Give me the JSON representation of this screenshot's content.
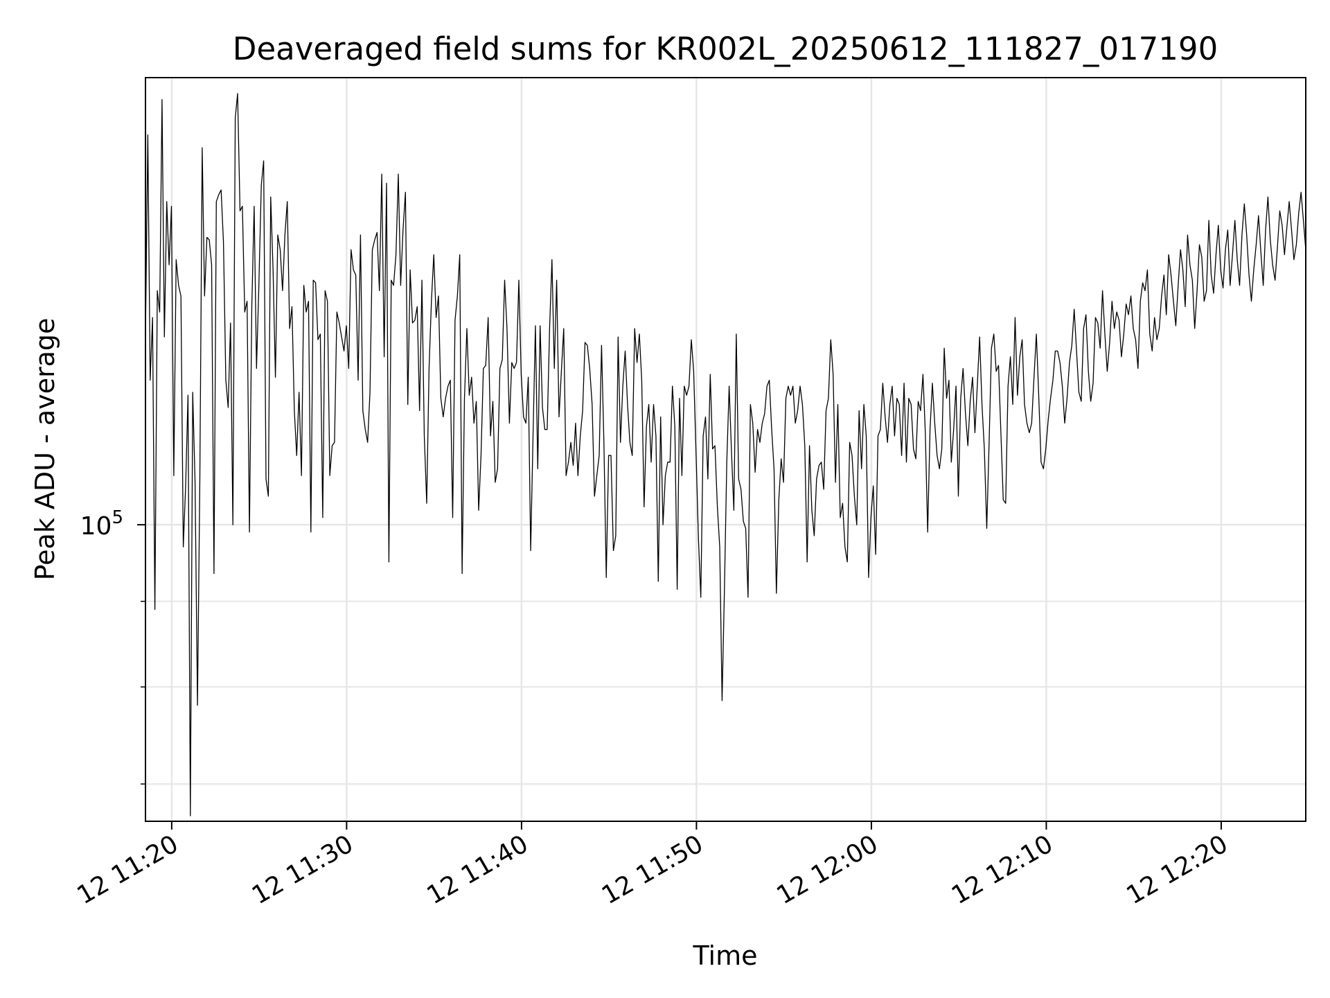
{
  "chart_data": {
    "type": "line",
    "title": "Deaveraged field sums for KR002L_20250612_111827_017190",
    "xlabel": "Time",
    "ylabel": "Peak ADU - average",
    "y_scale": "log",
    "grid": true,
    "line_color": "#000000",
    "x_ticks": [
      "12 11:20",
      "12 11:30",
      "12 11:40",
      "12 11:50",
      "12 12:00",
      "12 12:10",
      "12 12:20"
    ],
    "y_tick_labels": [
      {
        "base": "10",
        "exp": "5",
        "value": 100000
      }
    ],
    "xlim": [
      "2025-06-12T11:18:30",
      "2025-06-12T12:24:50"
    ],
    "ylim": [
      66500,
      185000
    ],
    "series": [
      {
        "x_start": "2025-06-12T11:18:30",
        "x_end": "2025-06-12T12:24:50",
        "values": [
          129500,
          171000,
          122000,
          133000,
          89000,
          138000,
          134000,
          179500,
          129500,
          156000,
          143000,
          155000,
          107000,
          144000,
          139000,
          137000,
          97000,
          105500,
          119500,
          67000,
          120000,
          106000,
          78000,
          106500,
          168000,
          137000,
          148500,
          148000,
          143000,
          93500,
          156000,
          157500,
          158500,
          147500,
          122000,
          117500,
          132000,
          100000,
          175000,
          181000,
          154000,
          155000,
          134000,
          136000,
          99000,
          135000,
          155000,
          124000,
          139000,
          159500,
          165000,
          106500,
          104000,
          157000,
          142000,
          122500,
          149000,
          146000,
          138000,
          149000,
          156000,
          131000,
          135000,
          117000,
          110000,
          120000,
          107000,
          139000,
          134000,
          136000,
          99000,
          140000,
          139500,
          129000,
          130000,
          101000,
          138000,
          136000,
          107000,
          111500,
          112000,
          134000,
          132000,
          129500,
          127000,
          131500,
          124000,
          146000,
          142000,
          141000,
          122000,
          149000,
          117000,
          114000,
          112000,
          120000,
          146000,
          148000,
          149500,
          138000,
          162000,
          126000,
          160000,
          95000,
          140000,
          139000,
          145000,
          162000,
          139000,
          150000,
          158000,
          118000,
          142000,
          132000,
          132500,
          135000,
          117000,
          140000,
          113000,
          103000,
          124000,
          136000,
          145000,
          133000,
          137000,
          119000,
          116000,
          119000,
          121000,
          122000,
          101000,
          132500,
          137000,
          145000,
          93500,
          119000,
          131000,
          119500,
          122500,
          115000,
          118500,
          102000,
          110000,
          124000,
          124500,
          133000,
          113000,
          118500,
          106000,
          108000,
          124000,
          125500,
          140000,
          131000,
          115000,
          125000,
          124000,
          125000,
          140000,
          123000,
          116000,
          115000,
          122500,
          96500,
          113000,
          131500,
          108000,
          131500,
          117500,
          114000,
          114000,
          131000,
          144000,
          124000,
          140000,
          116000,
          123500,
          131000,
          107000,
          109000,
          112000,
          108500,
          115000,
          107000,
          113000,
          117000,
          128500,
          128000,
          124000,
          118000,
          104000,
          107000,
          110000,
          128000,
          112000,
          93000,
          110000,
          110000,
          96500,
          98500,
          129500,
          112000,
          121000,
          127000,
          118000,
          112000,
          110000,
          131000,
          125000,
          130000,
          122000,
          102500,
          114500,
          118000,
          109000,
          118000,
          113000,
          92500,
          116000,
          100000,
          107000,
          109000,
          109000,
          121000,
          114500,
          91500,
          119000,
          107000,
          121000,
          119500,
          121000,
          129000,
          123500,
          110000,
          98000,
          90500,
          113000,
          116000,
          106500,
          123000,
          111000,
          111500,
          102500,
          97000,
          78500,
          91500,
          109000,
          121000,
          110500,
          102000,
          130000,
          106500,
          105000,
          100500,
          99500,
          90500,
          118000,
          115000,
          107500,
          114000,
          112000,
          115000,
          116500,
          121000,
          122000,
          114000,
          108000,
          91000,
          103500,
          109500,
          106000,
          119000,
          121000,
          119500,
          121000,
          115000,
          117000,
          121000,
          118000,
          111500,
          95000,
          111500,
          102000,
          98500,
          106500,
          108500,
          109000,
          105000,
          117000,
          119000,
          129000,
          123000,
          106000,
          118000,
          101000,
          103000,
          97000,
          95000,
          112000,
          110000,
          104000,
          100000,
          117000,
          108000,
          118000,
          113000,
          93000,
          101000,
          105500,
          96000,
          113000,
          114000,
          121500,
          116000,
          112000,
          118000,
          121000,
          113000,
          119000,
          118000,
          110000,
          121500,
          109000,
          119000,
          118000,
          111000,
          109500,
          118500,
          117000,
          123000,
          113500,
          99000,
          114000,
          121500,
          115000,
          110000,
          108000,
          111000,
          127500,
          119000,
          122000,
          109000,
          114000,
          121000,
          104000,
          119000,
          124000,
          116500,
          111500,
          118500,
          122500,
          113500,
          121000,
          129500,
          118000,
          111000,
          99500,
          112000,
          127500,
          130000,
          123500,
          124500,
          113500,
          103500,
          103000,
          121000,
          126000,
          118000,
          133000,
          119500,
          126000,
          129000,
          118000,
          115000,
          113500,
          115000,
          122500,
          130000,
          119500,
          109000,
          108000,
          111000,
          115500,
          119000,
          122000,
          127000,
          127000,
          125000,
          121000,
          115000,
          119000,
          125000,
          128000,
          134500,
          127000,
          120000,
          118500,
          131000,
          133500,
          123500,
          118500,
          121500,
          133000,
          132000,
          127500,
          138000,
          130000,
          123500,
          128500,
          136000,
          131000,
          134000,
          132500,
          126000,
          130000,
          135500,
          133500,
          137000,
          131000,
          129000,
          124000,
          136000,
          139500,
          138000,
          142000,
          130000,
          127000,
          133000,
          129000,
          131000,
          137000,
          141000,
          133500,
          145000,
          141000,
          136000,
          131500,
          139000,
          146000,
          142000,
          135000,
          149000,
          143000,
          140000,
          131000,
          138000,
          147000,
          144500,
          136000,
          138000,
          152000,
          141000,
          137500,
          145000,
          151000,
          142000,
          138500,
          146000,
          150000,
          139000,
          145000,
          152000,
          144000,
          139000,
          149000,
          155500,
          149000,
          141000,
          136000,
          142000,
          147000,
          153000,
          145500,
          139000,
          150000,
          157000,
          148000,
          143000,
          140000,
          146500,
          154000,
          151000,
          145000,
          150500,
          156000,
          150000,
          144000,
          147000,
          153500,
          158000,
          152000,
          146000
        ]
      }
    ]
  }
}
